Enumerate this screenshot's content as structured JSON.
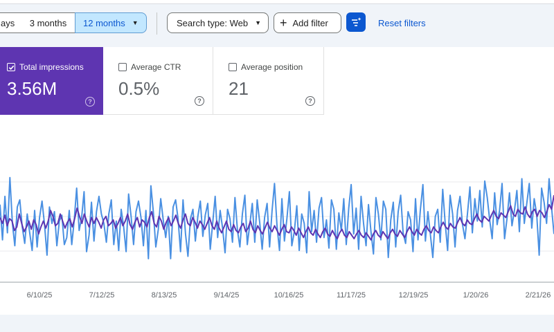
{
  "filters": {
    "date_ranges": [
      {
        "label": "ays",
        "selected": false
      },
      {
        "label": "3 months",
        "selected": false
      },
      {
        "label": "12 months",
        "selected": true
      }
    ],
    "search_type": "Search type: Web",
    "add_filter": "Add filter",
    "reset": "Reset filters"
  },
  "metrics": [
    {
      "label": "Total impressions",
      "value": "3.56M",
      "checked": true,
      "color": "#5e35b1"
    },
    {
      "label": "Average CTR",
      "value": "0.5%",
      "checked": false
    },
    {
      "label": "Average position",
      "value": "21",
      "checked": false
    }
  ],
  "chart_data": {
    "type": "line",
    "x_tick_labels": [
      "6/10/25",
      "7/12/25",
      "8/13/25",
      "9/14/25",
      "10/16/25",
      "11/17/25",
      "12/19/25",
      "1/20/26",
      "2/21/26"
    ],
    "y_tick_labels": [],
    "series": [
      {
        "color": "#4a90e2",
        "values": [
          0.66,
          0.36,
          0.73,
          0.42,
          0.89,
          0.5,
          0.31,
          0.64,
          0.7,
          0.47,
          0.33,
          0.58,
          0.42,
          0.27,
          0.61,
          0.3,
          0.55,
          0.69,
          0.49,
          0.23,
          0.64,
          0.5,
          0.6,
          0.31,
          0.52,
          0.57,
          0.32,
          0.38,
          0.61,
          0.32,
          0.52,
          0.8,
          0.44,
          0.55,
          0.77,
          0.26,
          0.4,
          0.68,
          0.35,
          0.6,
          0.73,
          0.58,
          0.5,
          0.34,
          0.58,
          0.7,
          0.32,
          0.52,
          0.27,
          0.62,
          0.47,
          0.26,
          0.75,
          0.56,
          0.32,
          0.6,
          0.69,
          0.55,
          0.31,
          0.61,
          0.2,
          0.82,
          0.6,
          0.3,
          0.45,
          0.71,
          0.53,
          0.38,
          0.56,
          0.2,
          0.64,
          0.7,
          0.54,
          0.26,
          0.7,
          0.41,
          0.22,
          0.54,
          0.62,
          0.35,
          0.56,
          0.69,
          0.39,
          0.57,
          0.67,
          0.28,
          0.5,
          0.73,
          0.38,
          0.61,
          0.46,
          0.25,
          0.62,
          0.54,
          0.34,
          0.72,
          0.44,
          0.3,
          0.58,
          0.74,
          0.32,
          0.49,
          0.67,
          0.34,
          0.7,
          0.51,
          0.28,
          0.55,
          0.67,
          0.3,
          0.61,
          0.84,
          0.48,
          0.27,
          0.71,
          0.35,
          0.54,
          0.77,
          0.31,
          0.43,
          0.65,
          0.27,
          0.58,
          0.5,
          0.25,
          0.77,
          0.43,
          0.61,
          0.34,
          0.63,
          0.72,
          0.38,
          0.53,
          0.29,
          0.7,
          0.62,
          0.28,
          0.59,
          0.44,
          0.71,
          0.32,
          0.63,
          0.83,
          0.41,
          0.63,
          0.28,
          0.73,
          0.5,
          0.31,
          0.66,
          0.43,
          0.24,
          0.72,
          0.58,
          0.36,
          0.69,
          0.62,
          0.21,
          0.53,
          0.68,
          0.3,
          0.6,
          0.74,
          0.42,
          0.33,
          0.6,
          0.53,
          0.26,
          0.71,
          0.36,
          0.62,
          0.83,
          0.35,
          0.6,
          0.41,
          0.21,
          0.56,
          0.62,
          0.34,
          0.79,
          0.5,
          0.27,
          0.74,
          0.58,
          0.3,
          0.61,
          0.73,
          0.49,
          0.37,
          0.58,
          0.81,
          0.42,
          0.71,
          0.52,
          0.78,
          0.47,
          0.86,
          0.72,
          0.53,
          0.37,
          0.76,
          0.49,
          0.61,
          0.84,
          0.37,
          0.54,
          0.76,
          0.48,
          0.61,
          0.78,
          0.43,
          0.88,
          0.5,
          0.67,
          0.84,
          0.46,
          0.71,
          0.58,
          0.23,
          0.8,
          0.68,
          0.5,
          0.88,
          0.64,
          0.41
        ]
      },
      {
        "color": "#5e35b1",
        "values": [
          0.55,
          0.5,
          0.57,
          0.48,
          0.54,
          0.52,
          0.44,
          0.47,
          0.58,
          0.5,
          0.43,
          0.47,
          0.52,
          0.45,
          0.53,
          0.49,
          0.41,
          0.47,
          0.52,
          0.46,
          0.52,
          0.61,
          0.56,
          0.48,
          0.5,
          0.58,
          0.52,
          0.46,
          0.51,
          0.54,
          0.47,
          0.54,
          0.63,
          0.56,
          0.5,
          0.58,
          0.52,
          0.47,
          0.55,
          0.5,
          0.55,
          0.51,
          0.46,
          0.53,
          0.56,
          0.48,
          0.5,
          0.53,
          0.46,
          0.5,
          0.55,
          0.48,
          0.52,
          0.58,
          0.49,
          0.45,
          0.51,
          0.55,
          0.47,
          0.53,
          0.51,
          0.47,
          0.55,
          0.6,
          0.5,
          0.47,
          0.56,
          0.52,
          0.45,
          0.51,
          0.55,
          0.48,
          0.52,
          0.57,
          0.5,
          0.46,
          0.53,
          0.58,
          0.5,
          0.48,
          0.55,
          0.51,
          0.46,
          0.52,
          0.49,
          0.45,
          0.5,
          0.55,
          0.48,
          0.45,
          0.52,
          0.46,
          0.42,
          0.47,
          0.52,
          0.45,
          0.43,
          0.49,
          0.44,
          0.42,
          0.47,
          0.5,
          0.43,
          0.46,
          0.52,
          0.45,
          0.42,
          0.48,
          0.44,
          0.41,
          0.46,
          0.51,
          0.46,
          0.43,
          0.48,
          0.44,
          0.4,
          0.45,
          0.49,
          0.43,
          0.42,
          0.47,
          0.44,
          0.4,
          0.46,
          0.42,
          0.38,
          0.43,
          0.47,
          0.42,
          0.4,
          0.45,
          0.41,
          0.38,
          0.43,
          0.46,
          0.41,
          0.39,
          0.44,
          0.4,
          0.37,
          0.42,
          0.45,
          0.4,
          0.38,
          0.43,
          0.4,
          0.37,
          0.41,
          0.44,
          0.4,
          0.38,
          0.42,
          0.39,
          0.36,
          0.41,
          0.44,
          0.4,
          0.38,
          0.43,
          0.4,
          0.37,
          0.42,
          0.45,
          0.41,
          0.39,
          0.44,
          0.41,
          0.38,
          0.43,
          0.47,
          0.43,
          0.4,
          0.45,
          0.42,
          0.4,
          0.45,
          0.48,
          0.44,
          0.42,
          0.47,
          0.44,
          0.42,
          0.47,
          0.51,
          0.47,
          0.45,
          0.5,
          0.47,
          0.46,
          0.51,
          0.55,
          0.5,
          0.48,
          0.53,
          0.5,
          0.49,
          0.54,
          0.58,
          0.53,
          0.51,
          0.56,
          0.54,
          0.52,
          0.57,
          0.61,
          0.56,
          0.54,
          0.59,
          0.57,
          0.55,
          0.6,
          0.65,
          0.58,
          0.56,
          0.62,
          0.59,
          0.58,
          0.64,
          0.58,
          0.55,
          0.6,
          0.62,
          0.56,
          0.61,
          0.59,
          0.55,
          0.6,
          0.66,
          0.62,
          0.74
        ]
      }
    ],
    "grid": true
  }
}
